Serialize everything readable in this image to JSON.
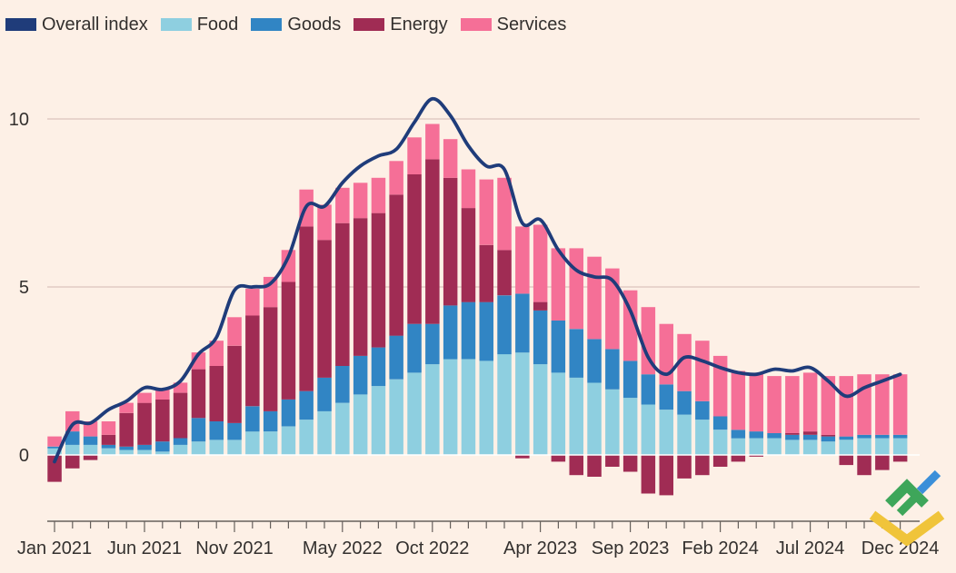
{
  "legend": {
    "overall": "Overall index",
    "food": "Food",
    "goods": "Goods",
    "energy": "Energy",
    "services": "Services"
  },
  "colors": {
    "overall": "#1f3c7a",
    "food": "#8ecfe0",
    "goods": "#3185c4",
    "energy": "#a02c54",
    "services": "#f56f97",
    "background": "#fdf0e6",
    "grid": "#dcc4bd",
    "axis": "#66605c"
  },
  "chart_data": {
    "type": "bar",
    "title": "",
    "xlabel": "",
    "ylabel": "",
    "ylim": [
      -2,
      11
    ],
    "yticks": [
      0,
      5,
      10
    ],
    "x_tick_labels": [
      {
        "index": 0,
        "label": "Jan 2021"
      },
      {
        "index": 5,
        "label": "Jun 2021"
      },
      {
        "index": 10,
        "label": "Nov 2021"
      },
      {
        "index": 16,
        "label": "May 2022"
      },
      {
        "index": 21,
        "label": "Oct 2022"
      },
      {
        "index": 27,
        "label": "Apr 2023"
      },
      {
        "index": 32,
        "label": "Sep 2023"
      },
      {
        "index": 37,
        "label": "Feb 2024"
      },
      {
        "index": 42,
        "label": "Jul 2024"
      },
      {
        "index": 47,
        "label": "Dec 2024"
      }
    ],
    "categories": [
      "Jan 2021",
      "Feb 2021",
      "Mar 2021",
      "Apr 2021",
      "May 2021",
      "Jun 2021",
      "Jul 2021",
      "Aug 2021",
      "Sep 2021",
      "Oct 2021",
      "Nov 2021",
      "Dec 2021",
      "Jan 2022",
      "Feb 2022",
      "Mar 2022",
      "Apr 2022",
      "May 2022",
      "Jun 2022",
      "Jul 2022",
      "Aug 2022",
      "Sep 2022",
      "Oct 2022",
      "Nov 2022",
      "Dec 2022",
      "Jan 2023",
      "Feb 2023",
      "Mar 2023",
      "Apr 2023",
      "May 2023",
      "Jun 2023",
      "Jul 2023",
      "Aug 2023",
      "Sep 2023",
      "Oct 2023",
      "Nov 2023",
      "Dec 2023",
      "Jan 2024",
      "Feb 2024",
      "Mar 2024",
      "Apr 2024",
      "May 2024",
      "Jun 2024",
      "Jul 2024",
      "Aug 2024",
      "Sep 2024",
      "Oct 2024",
      "Nov 2024",
      "Dec 2024"
    ],
    "series": [
      {
        "name": "Food",
        "values": [
          0.2,
          0.3,
          0.3,
          0.2,
          0.15,
          0.15,
          0.1,
          0.3,
          0.4,
          0.45,
          0.45,
          0.7,
          0.7,
          0.85,
          1.05,
          1.3,
          1.55,
          1.8,
          2.05,
          2.25,
          2.45,
          2.7,
          2.85,
          2.85,
          2.8,
          3.0,
          3.05,
          2.7,
          2.45,
          2.3,
          2.15,
          1.95,
          1.7,
          1.5,
          1.35,
          1.2,
          1.05,
          0.75,
          0.5,
          0.5,
          0.5,
          0.45,
          0.45,
          0.4,
          0.45,
          0.5,
          0.5,
          0.5
        ]
      },
      {
        "name": "Goods",
        "values": [
          0.05,
          0.4,
          0.25,
          0.1,
          0.1,
          0.15,
          0.3,
          0.2,
          0.7,
          0.55,
          0.5,
          0.75,
          0.6,
          0.8,
          0.85,
          1.0,
          1.1,
          1.15,
          1.15,
          1.3,
          1.45,
          1.2,
          1.6,
          1.7,
          1.75,
          1.75,
          1.75,
          1.6,
          1.55,
          1.45,
          1.3,
          1.2,
          1.1,
          0.9,
          0.75,
          0.7,
          0.55,
          0.4,
          0.25,
          0.2,
          0.15,
          0.15,
          0.15,
          0.15,
          0.1,
          0.1,
          0.1,
          0.1
        ]
      },
      {
        "name": "Energy",
        "values": [
          -0.8,
          -0.4,
          -0.15,
          0.3,
          1.0,
          1.25,
          1.25,
          1.35,
          1.45,
          1.65,
          2.3,
          2.7,
          3.1,
          3.5,
          4.9,
          4.1,
          4.25,
          4.1,
          4.0,
          4.2,
          4.45,
          4.9,
          3.8,
          2.8,
          1.7,
          1.35,
          -0.1,
          0.25,
          -0.2,
          -0.6,
          -0.65,
          -0.35,
          -0.5,
          -1.15,
          -1.2,
          -0.7,
          -0.6,
          -0.35,
          -0.2,
          -0.05,
          0.0,
          0.05,
          0.1,
          0.05,
          -0.3,
          -0.6,
          -0.45,
          -0.2
        ]
      },
      {
        "name": "Services",
        "values": [
          0.3,
          0.6,
          0.45,
          0.4,
          0.3,
          0.3,
          0.3,
          0.3,
          0.5,
          0.75,
          0.85,
          0.8,
          0.9,
          0.95,
          1.1,
          1.05,
          1.05,
          1.05,
          1.05,
          1.0,
          1.1,
          1.05,
          1.15,
          1.15,
          1.95,
          2.15,
          2.0,
          2.3,
          2.15,
          2.4,
          2.45,
          2.4,
          2.1,
          2.0,
          1.8,
          1.7,
          1.8,
          1.8,
          1.75,
          1.7,
          1.7,
          1.7,
          1.75,
          1.75,
          1.8,
          1.8,
          1.8,
          1.8
        ]
      }
    ],
    "overall": [
      -0.2,
      0.9,
      0.95,
      1.35,
      1.6,
      2.0,
      1.95,
      2.2,
      3.0,
      3.5,
      4.9,
      5.0,
      5.1,
      5.9,
      7.4,
      7.4,
      8.1,
      8.6,
      8.9,
      9.1,
      9.9,
      10.6,
      10.1,
      9.2,
      8.6,
      8.5,
      6.9,
      7.0,
      6.1,
      5.5,
      5.3,
      5.2,
      4.3,
      2.9,
      2.4,
      2.9,
      2.8,
      2.6,
      2.45,
      2.4,
      2.55,
      2.5,
      2.6,
      2.2,
      1.75,
      2.0,
      2.2,
      2.4
    ]
  }
}
